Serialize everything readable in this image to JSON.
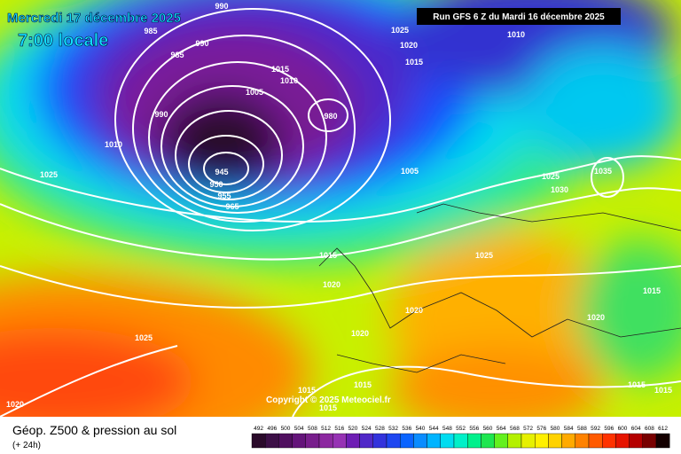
{
  "header": {
    "date": "Mercredi 17 décembre 2025",
    "time": "7:00 locale",
    "run": "Run GFS 6 Z du Mardi 16 décembre 2025"
  },
  "copyright": "Copyright © 2025 Meteociel.fr",
  "footer": {
    "title": "Géop. Z500 & pression au sol",
    "lead": "(+ 24h)"
  },
  "isobar_labels": [
    "990",
    "985",
    "990",
    "985",
    "1025",
    "1020",
    "1015",
    "1010",
    "1015",
    "1010",
    "1005",
    "980",
    "990",
    "1010",
    "1025",
    "945",
    "950",
    "955",
    "965",
    "1005",
    "1025",
    "1030",
    "1035",
    "1015",
    "1025",
    "1020",
    "1015",
    "1020",
    "1020",
    "1020",
    "1025",
    "1015",
    "1015",
    "1015",
    "1015",
    "1015",
    "1020"
  ],
  "colorbar": {
    "values": [
      492,
      496,
      500,
      504,
      508,
      512,
      516,
      520,
      524,
      528,
      532,
      536,
      540,
      544,
      548,
      552,
      556,
      560,
      564,
      568,
      572,
      576,
      580,
      584,
      588,
      592,
      596,
      600,
      604,
      608,
      612
    ],
    "colors": [
      "#2a0a2a",
      "#3c0f46",
      "#500f5f",
      "#64147a",
      "#781e8c",
      "#8c28a0",
      "#9632b4",
      "#6e1eb4",
      "#5028c8",
      "#3232dc",
      "#1e46f0",
      "#0a64ff",
      "#0a8cff",
      "#00b4ff",
      "#00dcf0",
      "#00f0c8",
      "#00f08c",
      "#1ee650",
      "#64f01e",
      "#b4f000",
      "#e6f000",
      "#fff000",
      "#ffd200",
      "#ffaa00",
      "#ff8200",
      "#ff5a00",
      "#ff3200",
      "#e61400",
      "#b40000",
      "#780000",
      "#140000"
    ]
  }
}
